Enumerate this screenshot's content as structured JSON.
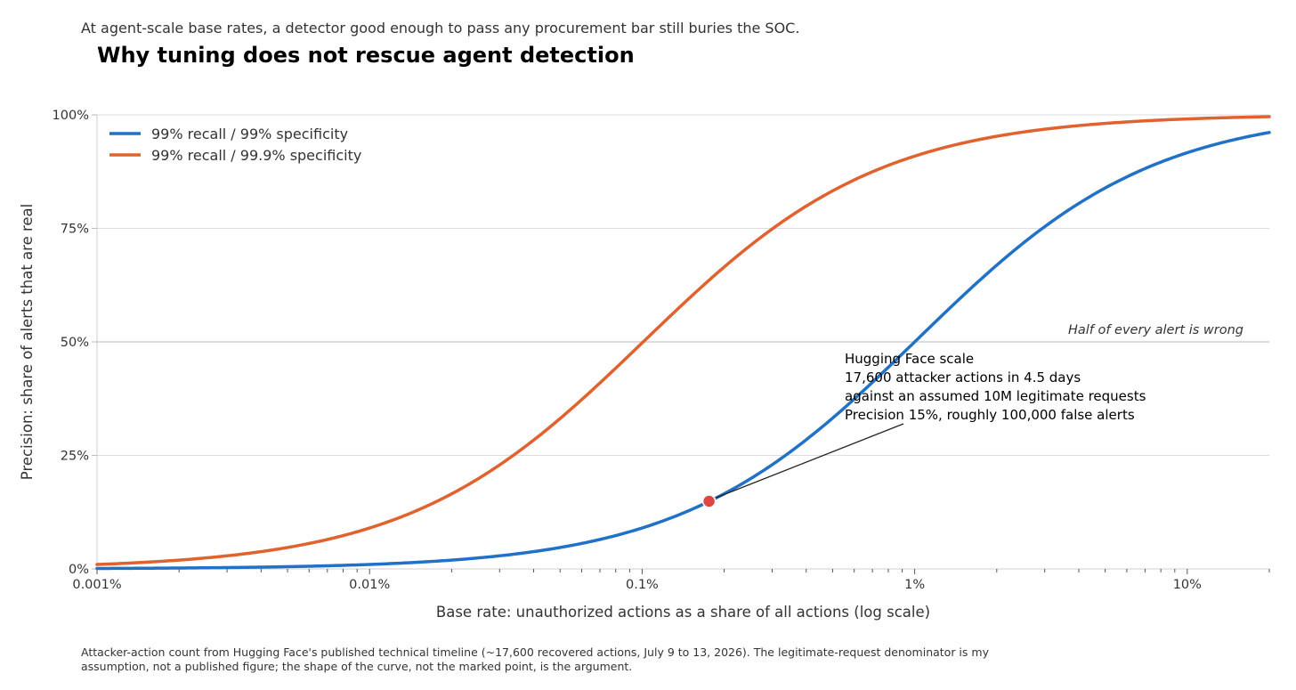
{
  "subtitle": "At agent-scale base rates, a detector good enough to pass any procurement bar still buries the SOC.",
  "title": "Why tuning does not rescue agent detection",
  "footnote": "Attacker-action count from Hugging Face's published technical timeline (~17,600 recovered actions, July 9 to 13, 2026). The legitimate-request denominator is my assumption, not a published figure; the shape of the curve, not the marked point, is the argument.",
  "chart_data": {
    "type": "line",
    "xscale": "log",
    "xlabel": "Base rate: unauthorized actions as a share of all actions (log scale)",
    "ylabel": "Precision: share of alerts that are real",
    "xlim": [
      0.001,
      20
    ],
    "ylim": [
      0,
      100
    ],
    "x_ticks": [
      0.001,
      0.01,
      0.1,
      1,
      10
    ],
    "x_tick_labels": [
      "0.001%",
      "0.01%",
      "0.1%",
      "1%",
      "10%"
    ],
    "y_ticks": [
      0,
      25,
      50,
      75,
      100
    ],
    "y_tick_labels": [
      "0%",
      "25%",
      "50%",
      "75%",
      "100%"
    ],
    "grid": "horizontal",
    "legend_position": "top-left",
    "series": [
      {
        "name": "99% recall / 99% specificity",
        "color": "#2171c7",
        "recall": 0.99,
        "specificity": 0.99,
        "x": [
          0.001,
          0.002,
          0.005,
          0.01,
          0.02,
          0.05,
          0.1,
          0.176,
          0.2,
          0.5,
          1,
          2,
          5,
          10,
          20
        ],
        "y": [
          0.1,
          0.2,
          0.5,
          1.0,
          1.9,
          4.7,
          9.0,
          14.9,
          16.6,
          33.2,
          50.0,
          66.9,
          83.9,
          91.7,
          96.1
        ]
      },
      {
        "name": "99% recall / 99.9% specificity",
        "color": "#e0622f",
        "recall": 0.99,
        "specificity": 0.999,
        "x": [
          0.001,
          0.002,
          0.005,
          0.01,
          0.02,
          0.05,
          0.1,
          0.2,
          0.5,
          1,
          2,
          5,
          10,
          20
        ],
        "y": [
          1.0,
          1.9,
          4.7,
          9.0,
          16.5,
          33.1,
          49.8,
          66.5,
          83.3,
          90.9,
          95.3,
          98.1,
          99.1,
          99.6
        ]
      }
    ],
    "reference_line": {
      "y": 50,
      "label": "Half of every alert is wrong"
    },
    "highlight_point": {
      "x": 0.176,
      "y": 14.9,
      "color": "#e04444"
    },
    "annotation": {
      "lines": [
        "Hugging Face scale",
        "17,600 attacker actions in 4.5 days",
        "against an assumed 10M legitimate requests",
        "Precision 15%, roughly 100,000 false alerts"
      ]
    }
  }
}
